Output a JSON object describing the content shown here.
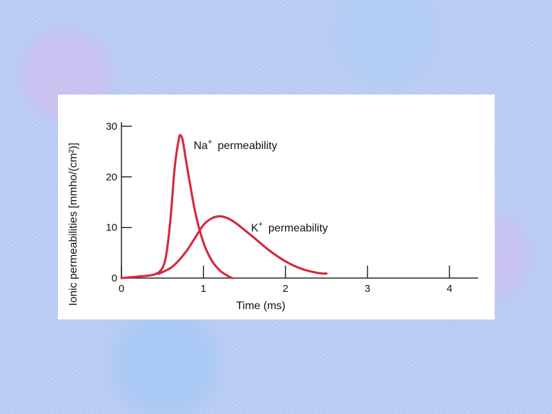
{
  "chart_data": {
    "type": "line",
    "title": "",
    "xlabel": "Time (ms)",
    "ylabel": "Ionic permeabilities [mmho/(cm²)]",
    "xlim": [
      0,
      4.35
    ],
    "ylim": [
      0,
      30
    ],
    "xticks": [
      "0",
      "1",
      "2",
      "3",
      "4"
    ],
    "yticks": [
      "0",
      "10",
      "20",
      "30"
    ],
    "grid": false,
    "series": [
      {
        "name": "Na",
        "label_base": "Na",
        "label_sup": "+",
        "label_rest": "permeability",
        "color": "#d42a3c",
        "x": [
          0,
          0.2,
          0.4,
          0.5,
          0.55,
          0.6,
          0.65,
          0.7,
          0.72,
          0.75,
          0.8,
          0.9,
          1.0,
          1.1,
          1.2,
          1.3,
          1.35
        ],
        "y": [
          0,
          0.3,
          0.7,
          2,
          5,
          12,
          22,
          27.5,
          28.2,
          27,
          22,
          13,
          7,
          3.5,
          1.5,
          0.4,
          0
        ]
      },
      {
        "name": "K",
        "label_base": "K",
        "label_sup": "+",
        "label_rest": "permeability",
        "color": "#d42a3c",
        "x": [
          0.45,
          0.6,
          0.7,
          0.8,
          0.9,
          1.0,
          1.1,
          1.2,
          1.3,
          1.4,
          1.6,
          1.8,
          2.0,
          2.2,
          2.4,
          2.5
        ],
        "y": [
          0.8,
          2,
          3.5,
          5.5,
          8,
          10.5,
          11.8,
          12.2,
          11.8,
          10.8,
          8.2,
          5.5,
          3.3,
          1.8,
          1.0,
          0.9
        ]
      }
    ]
  }
}
